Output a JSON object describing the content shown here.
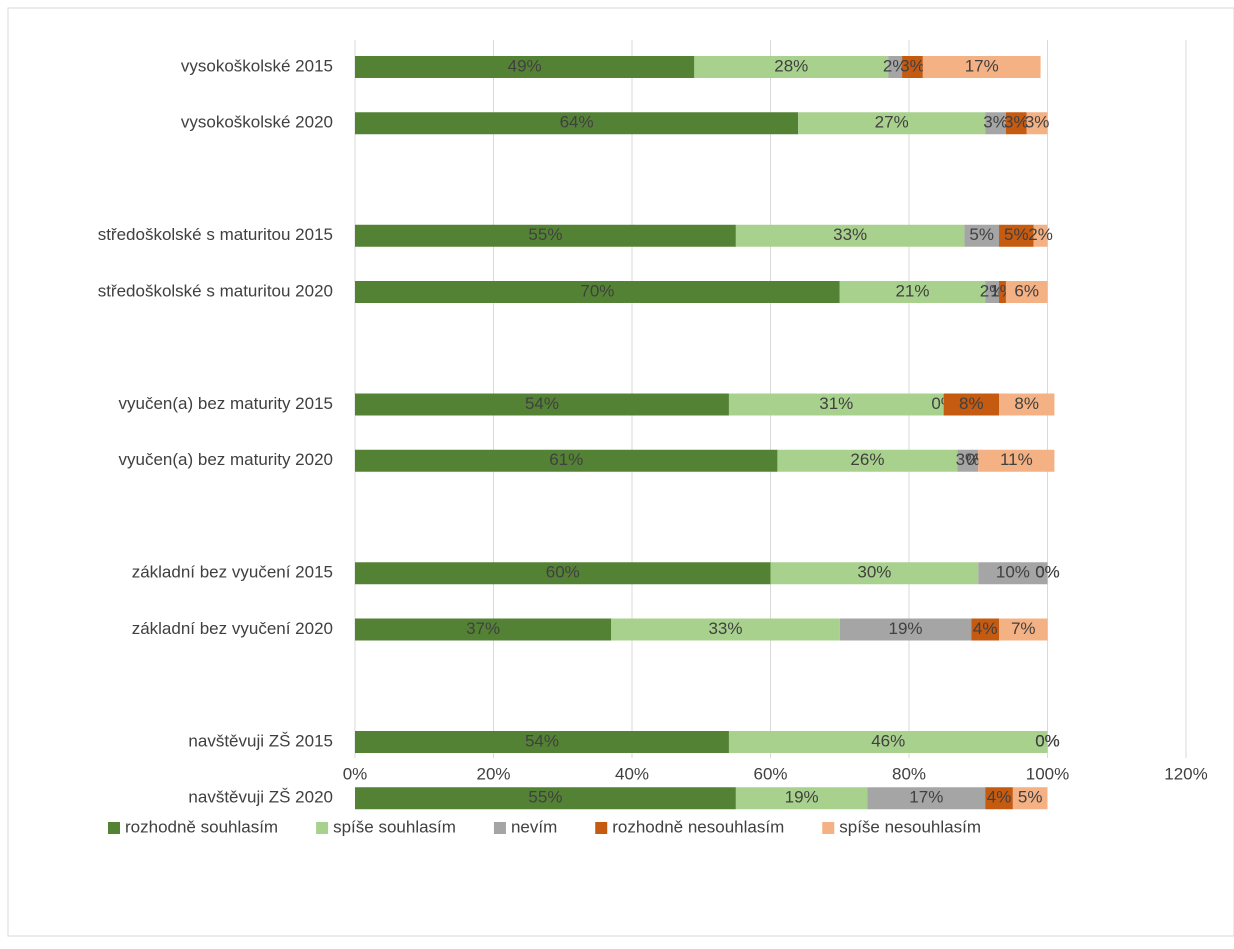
{
  "chart_data": {
    "type": "bar",
    "orientation": "horizontal",
    "stacked": true,
    "categories": [
      "vysokoškolské 2015",
      "vysokoškolské 2020",
      null,
      "středoškolské s maturitou 2015",
      "středoškolské s maturitou 2020",
      null,
      "vyučen(a) bez maturity 2015",
      "vyučen(a) bez maturity 2020",
      null,
      "základní bez vyučení 2015",
      "základní bez vyučení 2020",
      null,
      "navštěvuji ZŠ 2015",
      "navštěvuji ZŠ 2020"
    ],
    "series": [
      {
        "name": "rozhodně souhlasím",
        "color": "#548235",
        "values": [
          49,
          64,
          null,
          55,
          70,
          null,
          54,
          61,
          null,
          60,
          37,
          null,
          54,
          55
        ],
        "value_labels": [
          "49%",
          "64%",
          null,
          "55%",
          "70%",
          null,
          "54%",
          "61%",
          null,
          "60%",
          "37%",
          null,
          "54%",
          "55%"
        ]
      },
      {
        "name": "spíše souhlasím",
        "color": "#a9d18e",
        "values": [
          28,
          27,
          null,
          33,
          21,
          null,
          31,
          26,
          null,
          30,
          33,
          null,
          46,
          19
        ],
        "value_labels": [
          "28%",
          "27%",
          null,
          "33%",
          "21%",
          null,
          "31%",
          "26%",
          null,
          "30%",
          "33%",
          null,
          "46%",
          "19%"
        ]
      },
      {
        "name": "nevím",
        "color": "#a5a5a5",
        "values": [
          2,
          3,
          null,
          5,
          2,
          null,
          0,
          3,
          null,
          10,
          19,
          null,
          0,
          17
        ],
        "value_labels": [
          "2%",
          "3%",
          null,
          "5%",
          "2%",
          null,
          "0%",
          "3%",
          null,
          "10%",
          "19%",
          null,
          "0%",
          "17%"
        ]
      },
      {
        "name": "rozhodně nesouhlasím",
        "color": "#c55a11",
        "values": [
          3,
          3,
          null,
          5,
          1,
          null,
          8,
          0,
          null,
          0,
          4,
          null,
          0,
          4
        ],
        "value_labels": [
          "3%",
          "3%",
          null,
          "5%",
          "1%",
          null,
          "8%",
          "0%",
          null,
          "0%",
          "4%",
          null,
          "0%",
          "4%"
        ]
      },
      {
        "name": "spíše nesouhlasím",
        "color": "#f4b183",
        "values": [
          17,
          3,
          null,
          2,
          6,
          null,
          8,
          11,
          null,
          0,
          7,
          null,
          0,
          5
        ],
        "value_labels": [
          "17%",
          "3%",
          null,
          "2%",
          "6%",
          null,
          "8%",
          "11%",
          null,
          "0%",
          "7%",
          null,
          "0%",
          "5%"
        ]
      }
    ],
    "xlim": [
      0,
      120
    ],
    "xticks": [
      {
        "value": 0,
        "label": "0%"
      },
      {
        "value": 20,
        "label": "20%"
      },
      {
        "value": 40,
        "label": "40%"
      },
      {
        "value": 60,
        "label": "60%"
      },
      {
        "value": 80,
        "label": "80%"
      },
      {
        "value": 100,
        "label": "100%"
      },
      {
        "value": 120,
        "label": "120%"
      }
    ],
    "grid": true,
    "legend": "bottom"
  }
}
